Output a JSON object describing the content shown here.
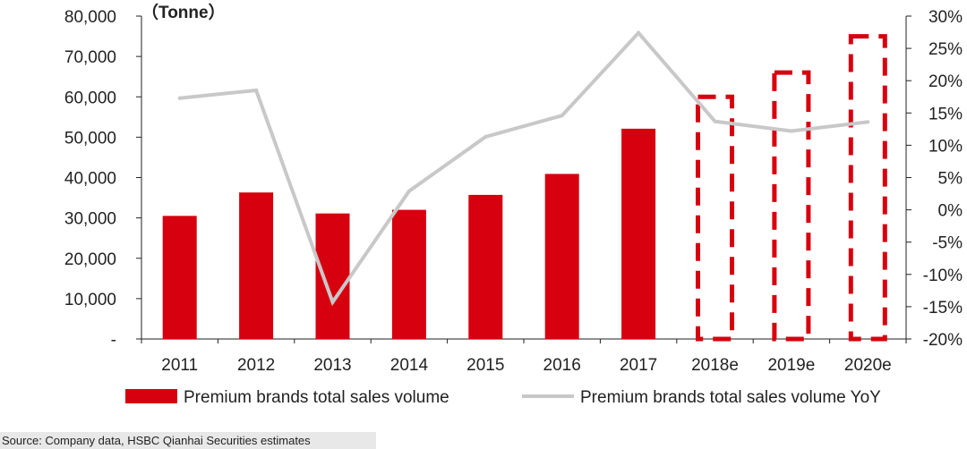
{
  "chart_data": {
    "type": "bar",
    "unit_label": "（Tonne）",
    "categories": [
      "2011",
      "2012",
      "2013",
      "2014",
      "2015",
      "2016",
      "2017",
      "2018e",
      "2019e",
      "2020e"
    ],
    "series": [
      {
        "name": "Premium brands total sales volume",
        "kind": "bar",
        "axis": "left",
        "values": [
          30500,
          36300,
          31100,
          32000,
          35700,
          40900,
          52100,
          60000,
          66000,
          75000
        ],
        "estimated": [
          false,
          false,
          false,
          false,
          false,
          false,
          false,
          true,
          true,
          true
        ]
      },
      {
        "name": "Premium brands total sales volume YoY",
        "kind": "line",
        "axis": "right",
        "values": [
          17.3,
          18.5,
          -14.3,
          2.9,
          11.3,
          14.6,
          27.4,
          13.7,
          12.2,
          13.6
        ]
      }
    ],
    "left_axis": {
      "ylim": [
        0,
        80000
      ],
      "tick_labels": [
        "-",
        "10,000",
        "20,000",
        "30,000",
        "40,000",
        "50,000",
        "60,000",
        "70,000",
        "80,000"
      ]
    },
    "right_axis": {
      "ylim": [
        -20,
        30
      ],
      "tick_labels": [
        "-20%",
        "-15%",
        "-10%",
        "-5%",
        "0%",
        "5%",
        "10%",
        "15%",
        "20%",
        "25%",
        "30%"
      ]
    },
    "legend_position": "bottom",
    "colors": {
      "bar": "#d7000f",
      "line": "#c8c8c8",
      "axis": "#222222"
    }
  },
  "source": "Source: Company data, HSBC Qianhai Securities estimates"
}
